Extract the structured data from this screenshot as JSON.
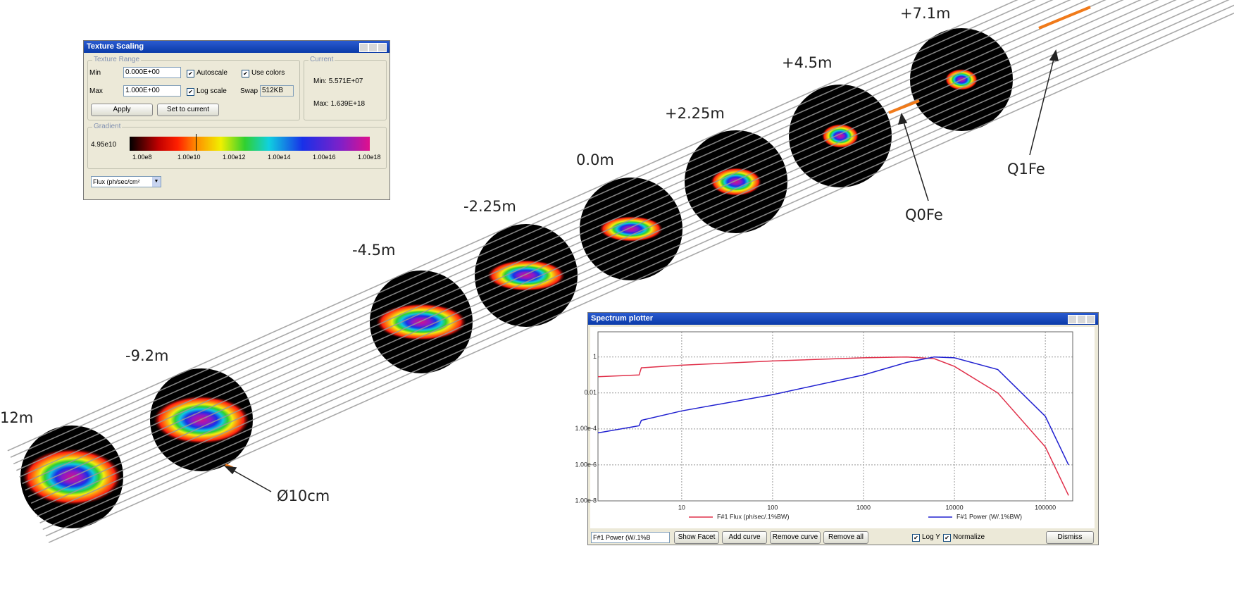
{
  "beam_labels": {
    "positions": [
      "12m",
      "-9.2m",
      "-4.5m",
      "-2.25m",
      "0.0m",
      "+2.25m",
      "+4.5m",
      "+7.1m"
    ],
    "magnets": [
      "Q0Fe",
      "Q1Fe"
    ],
    "diameter": "Ø10cm"
  },
  "texture_scaling": {
    "title": "Texture Scaling",
    "range_group": "Texture Range",
    "min_label": "Min",
    "min_value": "0.000E+00",
    "max_label": "Max",
    "max_value": "1.000E+00",
    "autoscale": "Autoscale",
    "use_colors": "Use colors",
    "log_scale": "Log scale",
    "swap_label": "Swap",
    "swap_value": "512KB",
    "apply": "Apply",
    "set_to_current": "Set to current",
    "current_group": "Current",
    "current_min_label": "Min:",
    "current_min": "5.571E+07",
    "current_max_label": "Max:",
    "current_max": "1.639E+18",
    "gradient_group": "Gradient",
    "gradient_cursor": "4.95e10",
    "gradient_ticks": [
      "1.00e8",
      "1.00e10",
      "1.00e12",
      "1.00e14",
      "1.00e16",
      "1.00e18"
    ],
    "quantity": "Flux (ph/sec/cm²"
  },
  "spectrum_plotter": {
    "title": "Spectrum plotter",
    "chart_data": {
      "type": "line",
      "log_x": true,
      "log_y": true,
      "grid": true,
      "x": [
        1.2,
        3.4,
        3.6,
        10,
        100,
        1000,
        3000,
        6000,
        10000,
        30000,
        100000,
        180000
      ],
      "xlim": [
        1.2,
        200000
      ],
      "xticks": [
        10,
        100,
        1000,
        10000,
        100000
      ],
      "ylim": [
        1e-08,
        25
      ],
      "yticks": [
        1,
        0.01,
        {
          "value": 0.0001,
          "label": "1.00e-4"
        },
        {
          "value": 1e-06,
          "label": "1.00e-6"
        },
        {
          "value": 1e-08,
          "label": "1.00e-8"
        }
      ],
      "series": [
        {
          "name": "F#1 Flux (ph/sec/.1%BW)",
          "color": "#e0304a",
          "values": [
            0.08,
            0.1,
            0.25,
            0.35,
            0.6,
            0.9,
            1,
            0.8,
            0.3,
            0.01,
            1e-05,
            2e-08
          ]
        },
        {
          "name": "F#1 Power (W/.1%BW)",
          "color": "#2020d0",
          "values": [
            6e-05,
            0.00015,
            0.0003,
            0.001,
            0.008,
            0.1,
            0.5,
            1,
            0.9,
            0.2,
            0.0005,
            1e-06
          ]
        }
      ]
    },
    "controls": {
      "curve_select": "F#1 Power (W/.1%B",
      "show_facet": "Show Facet",
      "add_curve": "Add curve",
      "remove_curve": "Remove curve",
      "remove_all": "Remove all",
      "log_y": "Log Y",
      "normalize": "Normalize",
      "dismiss": "Dismiss"
    }
  }
}
